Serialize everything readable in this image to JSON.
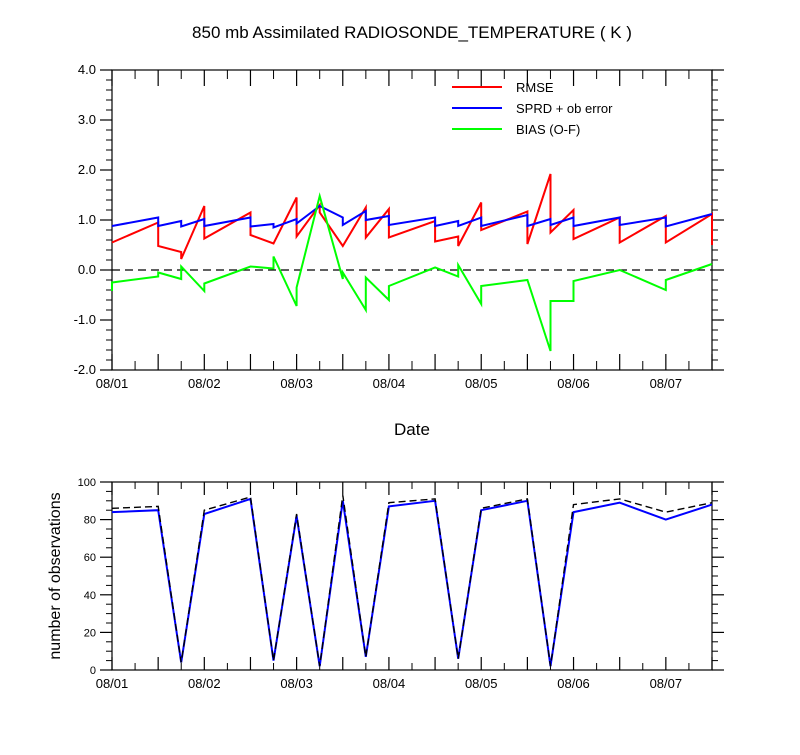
{
  "colors": {
    "rmse": "#ff0000",
    "spread": "#0000ff",
    "bias": "#00ff00",
    "zero_line": "#000000",
    "obs_used": "#0000ff",
    "obs_possible": "#000000"
  },
  "chart_data": [
    {
      "type": "line",
      "title": "850 mb Assimilated RADIOSONDE_TEMPERATURE ( K )",
      "xlabel": "Date",
      "ylabel": "",
      "xlim": [
        0,
        6.5
      ],
      "ylim": [
        -2.0,
        4.0
      ],
      "x_ticks": [
        0,
        1,
        2,
        3,
        4,
        5,
        6
      ],
      "x_tick_labels": [
        "08/01",
        "08/02",
        "08/03",
        "08/04",
        "08/05",
        "08/06",
        "08/07"
      ],
      "y_ticks": [
        -2.0,
        -1.0,
        0.0,
        1.0,
        2.0,
        3.0,
        4.0
      ],
      "y_tick_labels": [
        "-2.0",
        "-1.0",
        "0.0",
        "1.0",
        "2.0",
        "3.0",
        "4.0"
      ],
      "grid": false,
      "legend_position": "top-right",
      "reference_line": {
        "y": 0.0,
        "style": "dashed"
      },
      "series": [
        {
          "name": "RMSE",
          "color_key": "rmse",
          "points": [
            [
              0,
              0.55
            ],
            [
              0.5,
              0.95
            ],
            [
              0.5,
              0.48
            ],
            [
              0.75,
              0.36
            ],
            [
              0.75,
              0.22
            ],
            [
              1.0,
              1.28
            ],
            [
              1.0,
              0.63
            ],
            [
              1.5,
              1.15
            ],
            [
              1.5,
              0.7
            ],
            [
              1.75,
              0.53
            ],
            [
              2.0,
              1.45
            ],
            [
              2.0,
              0.67
            ],
            [
              2.25,
              1.3
            ],
            [
              2.25,
              1.15
            ],
            [
              2.5,
              0.48
            ],
            [
              2.75,
              1.25
            ],
            [
              2.75,
              0.65
            ],
            [
              3.0,
              1.22
            ],
            [
              3.0,
              0.65
            ],
            [
              3.5,
              0.98
            ],
            [
              3.5,
              0.57
            ],
            [
              3.75,
              0.67
            ],
            [
              3.75,
              0.48
            ],
            [
              4.0,
              1.35
            ],
            [
              4.0,
              0.8
            ],
            [
              4.5,
              1.17
            ],
            [
              4.5,
              0.52
            ],
            [
              4.75,
              1.92
            ],
            [
              4.75,
              0.75
            ],
            [
              5.0,
              1.2
            ],
            [
              5.0,
              0.62
            ],
            [
              5.5,
              1.05
            ],
            [
              5.5,
              0.55
            ],
            [
              6.0,
              1.08
            ],
            [
              6.0,
              0.55
            ],
            [
              6.5,
              1.12
            ],
            [
              6.5,
              0.5
            ]
          ]
        },
        {
          "name": "SPRD + ob error",
          "color_key": "spread",
          "points": [
            [
              0,
              0.88
            ],
            [
              0.5,
              1.05
            ],
            [
              0.5,
              0.88
            ],
            [
              0.75,
              0.98
            ],
            [
              0.75,
              0.87
            ],
            [
              1.0,
              1.02
            ],
            [
              1.0,
              0.88
            ],
            [
              1.5,
              1.05
            ],
            [
              1.5,
              0.87
            ],
            [
              1.75,
              0.92
            ],
            [
              1.75,
              0.85
            ],
            [
              2.0,
              1.02
            ],
            [
              2.0,
              0.93
            ],
            [
              2.25,
              1.28
            ],
            [
              2.5,
              1.05
            ],
            [
              2.5,
              0.9
            ],
            [
              2.75,
              1.18
            ],
            [
              2.75,
              1.0
            ],
            [
              3.0,
              1.08
            ],
            [
              3.0,
              0.9
            ],
            [
              3.5,
              1.05
            ],
            [
              3.5,
              0.88
            ],
            [
              3.75,
              0.98
            ],
            [
              3.75,
              0.88
            ],
            [
              4.0,
              1.05
            ],
            [
              4.0,
              0.88
            ],
            [
              4.5,
              1.1
            ],
            [
              4.5,
              0.88
            ],
            [
              4.75,
              1.02
            ],
            [
              4.75,
              0.9
            ],
            [
              5.0,
              1.05
            ],
            [
              5.0,
              0.88
            ],
            [
              5.5,
              1.05
            ],
            [
              5.5,
              0.9
            ],
            [
              6.0,
              1.05
            ],
            [
              6.0,
              0.87
            ],
            [
              6.5,
              1.12
            ]
          ]
        },
        {
          "name": "BIAS (O-F)",
          "color_key": "bias",
          "points": [
            [
              0,
              -0.42
            ],
            [
              0,
              -0.25
            ],
            [
              0.5,
              -0.13
            ],
            [
              0.5,
              -0.05
            ],
            [
              0.75,
              -0.18
            ],
            [
              0.75,
              0.07
            ],
            [
              1.0,
              -0.42
            ],
            [
              1.0,
              -0.27
            ],
            [
              1.5,
              0.07
            ],
            [
              1.75,
              0.03
            ],
            [
              1.75,
              0.27
            ],
            [
              2.0,
              -0.72
            ],
            [
              2.0,
              -0.35
            ],
            [
              2.25,
              1.48
            ],
            [
              2.5,
              -0.18
            ],
            [
              2.5,
              -0.05
            ],
            [
              2.75,
              -0.8
            ],
            [
              2.75,
              -0.15
            ],
            [
              3.0,
              -0.6
            ],
            [
              3.0,
              -0.32
            ],
            [
              3.5,
              0.05
            ],
            [
              3.75,
              -0.13
            ],
            [
              3.75,
              0.1
            ],
            [
              4.0,
              -0.68
            ],
            [
              4.0,
              -0.32
            ],
            [
              4.5,
              -0.2
            ],
            [
              4.75,
              -1.62
            ],
            [
              4.75,
              -0.62
            ],
            [
              5.0,
              -0.62
            ],
            [
              5.0,
              -0.22
            ],
            [
              5.5,
              0.0
            ],
            [
              6.0,
              -0.4
            ],
            [
              6.0,
              -0.2
            ],
            [
              6.5,
              0.12
            ]
          ]
        }
      ]
    },
    {
      "type": "line",
      "title": "",
      "xlabel": "",
      "ylabel": "number of observations",
      "xlim": [
        0,
        6.5
      ],
      "ylim": [
        0,
        100
      ],
      "x_ticks": [
        0,
        1,
        2,
        3,
        4,
        5,
        6
      ],
      "x_tick_labels": [
        "08/01",
        "08/02",
        "08/03",
        "08/04",
        "08/05",
        "08/06",
        "08/07"
      ],
      "y_ticks": [
        0,
        20,
        40,
        60,
        80,
        100
      ],
      "y_tick_labels": [
        "0",
        "20",
        "40",
        "60",
        "80",
        "100"
      ],
      "grid": false,
      "series": [
        {
          "style": "solid",
          "color_key": "obs_used",
          "points": [
            [
              0,
              84
            ],
            [
              0.5,
              85
            ],
            [
              0.75,
              4
            ],
            [
              1.0,
              83
            ],
            [
              1.5,
              91
            ],
            [
              1.75,
              5
            ],
            [
              2.0,
              82
            ],
            [
              2.25,
              2
            ],
            [
              2.5,
              90
            ],
            [
              2.75,
              7
            ],
            [
              3.0,
              87
            ],
            [
              3.5,
              90
            ],
            [
              3.75,
              6
            ],
            [
              4.0,
              85
            ],
            [
              4.5,
              90
            ],
            [
              4.75,
              2
            ],
            [
              5.0,
              84
            ],
            [
              5.5,
              89
            ],
            [
              6.0,
              80
            ],
            [
              6.5,
              88
            ]
          ]
        },
        {
          "style": "dashed",
          "color_key": "obs_possible",
          "points": [
            [
              0,
              86
            ],
            [
              0.5,
              87
            ],
            [
              0.75,
              4
            ],
            [
              1.0,
              85
            ],
            [
              1.5,
              92
            ],
            [
              1.75,
              5
            ],
            [
              2.0,
              83
            ],
            [
              2.25,
              2
            ],
            [
              2.5,
              93
            ],
            [
              2.75,
              7
            ],
            [
              3.0,
              89
            ],
            [
              3.5,
              91
            ],
            [
              3.75,
              6
            ],
            [
              4.0,
              86
            ],
            [
              4.5,
              91
            ],
            [
              4.75,
              2
            ],
            [
              5.0,
              88
            ],
            [
              5.5,
              91
            ],
            [
              6.0,
              84
            ],
            [
              6.5,
              89
            ]
          ]
        }
      ]
    }
  ]
}
